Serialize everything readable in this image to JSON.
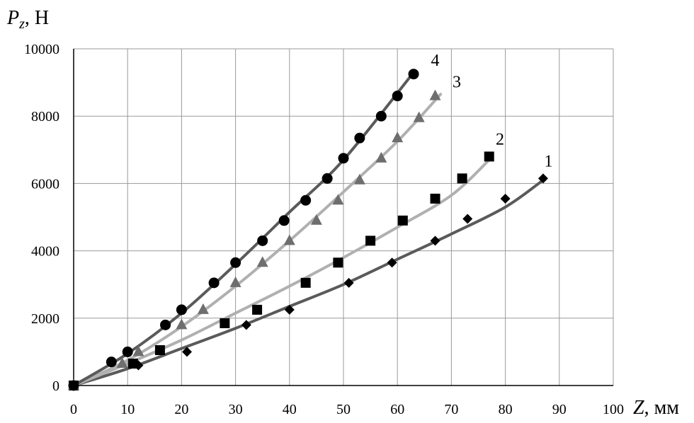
{
  "chart_data": {
    "type": "scatter",
    "title": "",
    "ylabel_symbol": "P",
    "ylabel_sub": "z",
    "ylabel_unit": ", Н",
    "xlabel_symbol": "Z",
    "xlabel_unit": ", мм",
    "xlim": [
      0,
      100
    ],
    "ylim": [
      0,
      10000
    ],
    "xticks": [
      0,
      10,
      20,
      30,
      40,
      50,
      60,
      70,
      80,
      90,
      100
    ],
    "yticks": [
      0,
      2000,
      4000,
      6000,
      8000,
      10000
    ],
    "grid": true,
    "series": [
      {
        "name": "1",
        "marker": "diamond",
        "color": "#000000",
        "line_color": "#5a5a5a",
        "points": [
          [
            0,
            0
          ],
          [
            12,
            600
          ],
          [
            21,
            1000
          ],
          [
            32,
            1800
          ],
          [
            40,
            2250
          ],
          [
            51,
            3050
          ],
          [
            59,
            3650
          ],
          [
            67,
            4300
          ],
          [
            73,
            4950
          ],
          [
            80,
            5550
          ],
          [
            87,
            6150
          ]
        ],
        "fit": [
          [
            0,
            0
          ],
          [
            10,
            500
          ],
          [
            20,
            1100
          ],
          [
            30,
            1700
          ],
          [
            40,
            2350
          ],
          [
            50,
            3000
          ],
          [
            60,
            3750
          ],
          [
            70,
            4500
          ],
          [
            80,
            5300
          ],
          [
            87,
            6100
          ]
        ]
      },
      {
        "name": "2",
        "marker": "square",
        "color": "#000000",
        "line_color": "#b0b0b0",
        "points": [
          [
            0,
            0
          ],
          [
            11,
            650
          ],
          [
            16,
            1050
          ],
          [
            28,
            1850
          ],
          [
            34,
            2250
          ],
          [
            43,
            3050
          ],
          [
            49,
            3650
          ],
          [
            55,
            4300
          ],
          [
            61,
            4900
          ],
          [
            67,
            5550
          ],
          [
            72,
            6150
          ],
          [
            77,
            6800
          ]
        ],
        "fit": [
          [
            0,
            0
          ],
          [
            10,
            650
          ],
          [
            20,
            1350
          ],
          [
            30,
            2150
          ],
          [
            40,
            2950
          ],
          [
            50,
            3800
          ],
          [
            60,
            4700
          ],
          [
            70,
            5650
          ],
          [
            77,
            6700
          ]
        ]
      },
      {
        "name": "3",
        "marker": "triangle",
        "color": "#6e6e6e",
        "line_color": "#b0b0b0",
        "points": [
          [
            0,
            0
          ],
          [
            9,
            650
          ],
          [
            12,
            1000
          ],
          [
            20,
            1800
          ],
          [
            24,
            2250
          ],
          [
            30,
            3050
          ],
          [
            35,
            3650
          ],
          [
            40,
            4300
          ],
          [
            45,
            4900
          ],
          [
            49,
            5500
          ],
          [
            53,
            6100
          ],
          [
            57,
            6750
          ],
          [
            60,
            7350
          ],
          [
            64,
            7950
          ],
          [
            67,
            8600
          ]
        ],
        "fit": [
          [
            0,
            0
          ],
          [
            10,
            750
          ],
          [
            20,
            1750
          ],
          [
            30,
            2950
          ],
          [
            40,
            4300
          ],
          [
            50,
            5750
          ],
          [
            60,
            7250
          ],
          [
            68,
            8650
          ]
        ]
      },
      {
        "name": "4",
        "marker": "circle",
        "color": "#000000",
        "line_color": "#5a5a5a",
        "points": [
          [
            0,
            0
          ],
          [
            7,
            700
          ],
          [
            10,
            1000
          ],
          [
            17,
            1800
          ],
          [
            20,
            2250
          ],
          [
            26,
            3050
          ],
          [
            30,
            3650
          ],
          [
            35,
            4300
          ],
          [
            39,
            4900
          ],
          [
            43,
            5500
          ],
          [
            47,
            6150
          ],
          [
            50,
            6750
          ],
          [
            53,
            7350
          ],
          [
            57,
            8000
          ],
          [
            60,
            8600
          ],
          [
            63,
            9250
          ]
        ],
        "fit": [
          [
            0,
            0
          ],
          [
            10,
            950
          ],
          [
            20,
            2150
          ],
          [
            30,
            3600
          ],
          [
            40,
            5150
          ],
          [
            50,
            6700
          ],
          [
            63,
            9300
          ]
        ]
      }
    ],
    "series_label_anchor": [
      [
        88,
        6500
      ],
      [
        79,
        7150
      ],
      [
        71,
        8850
      ],
      [
        67,
        9500
      ]
    ]
  }
}
